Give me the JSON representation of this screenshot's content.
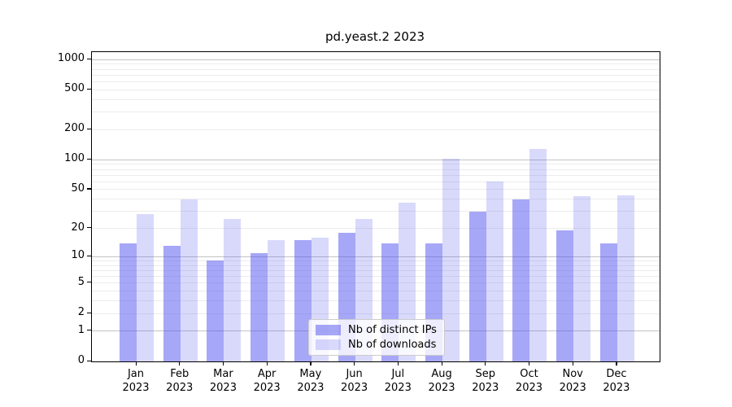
{
  "title": "pd.yeast.2 2023",
  "chart_data": {
    "type": "bar",
    "title": "pd.yeast.2 2023",
    "categories": [
      "Jan",
      "Feb",
      "Mar",
      "Apr",
      "May",
      "Jun",
      "Jul",
      "Aug",
      "Sep",
      "Oct",
      "Nov",
      "Dec"
    ],
    "x_year_label": "2023",
    "series": [
      {
        "name": "Nb of distinct IPs",
        "color": "rgba(80,80,240,0.5)",
        "values": [
          14,
          13,
          9,
          11,
          15,
          18,
          14,
          14,
          30,
          40,
          19,
          14
        ]
      },
      {
        "name": "Nb of downloads",
        "color": "rgba(80,80,240,0.22)",
        "values": [
          28,
          40,
          25,
          15,
          16,
          25,
          37,
          103,
          60,
          128,
          43,
          44
        ]
      }
    ],
    "yscale": "log1p",
    "yticks": [
      0,
      1,
      2,
      5,
      10,
      20,
      50,
      100,
      200,
      500,
      1000
    ],
    "ylim": [
      0,
      1183
    ],
    "grid": {
      "major": [
        1,
        10,
        100,
        1000
      ],
      "minor": [
        2,
        3,
        4,
        5,
        6,
        7,
        8,
        9,
        20,
        30,
        40,
        50,
        60,
        70,
        80,
        90,
        200,
        300,
        400,
        500,
        600,
        700,
        800,
        900
      ]
    },
    "legend_position": "lower center",
    "legend": [
      {
        "label": "Nb of distinct IPs"
      },
      {
        "label": "Nb of downloads"
      }
    ]
  }
}
